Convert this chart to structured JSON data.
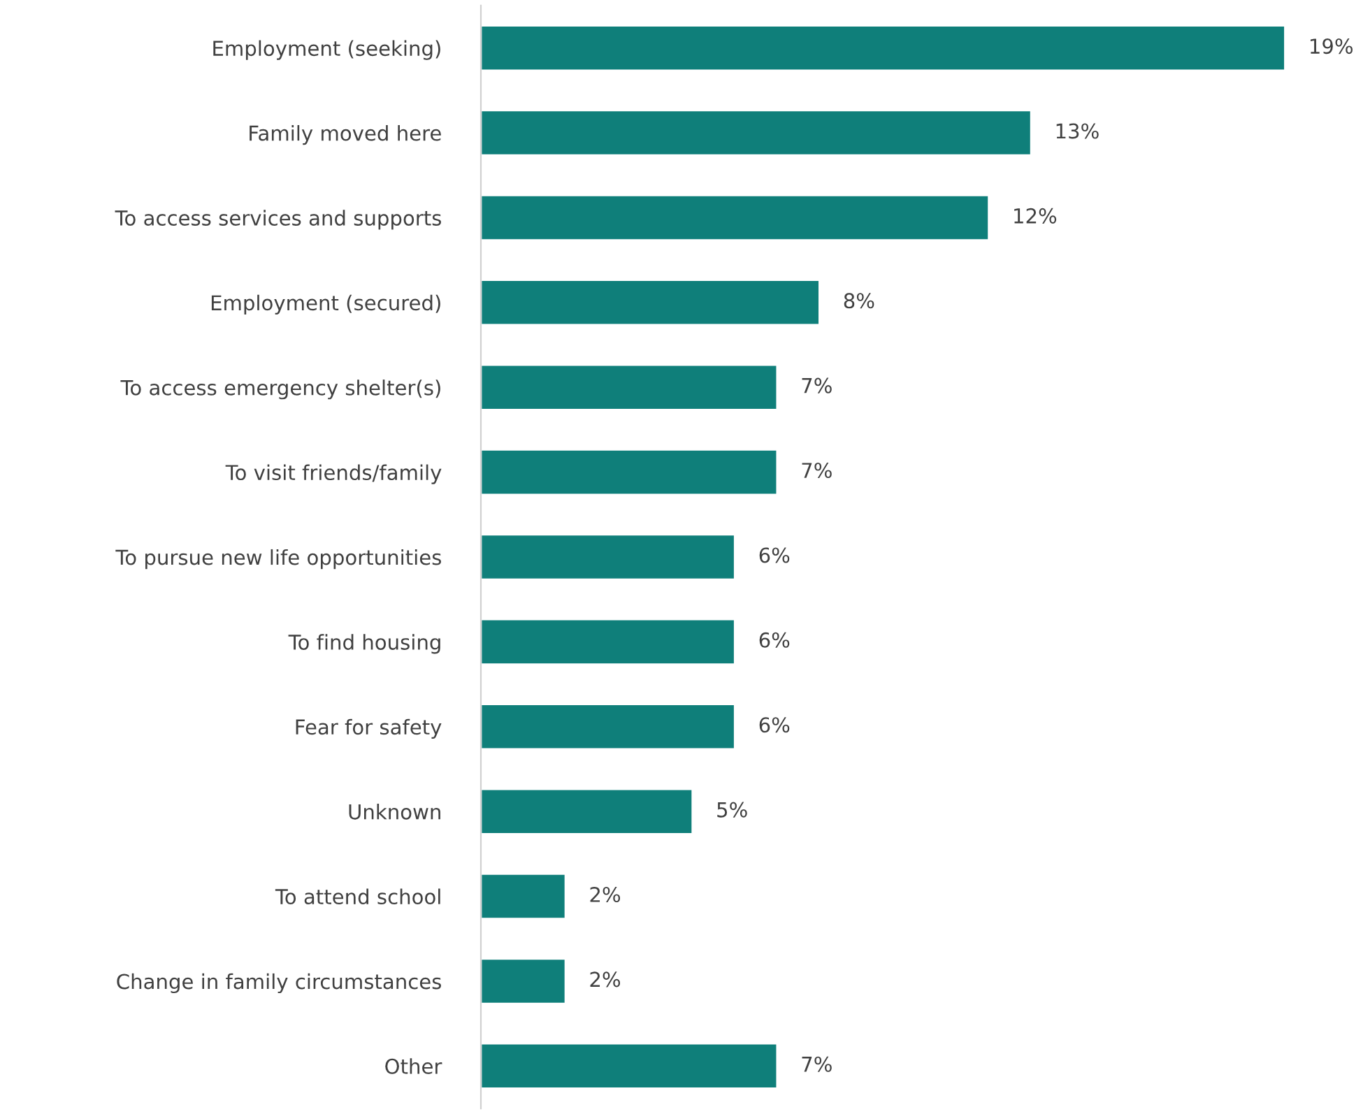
{
  "chart_data": {
    "type": "bar",
    "orientation": "horizontal",
    "categories": [
      "Employment (seeking)",
      "Family moved here",
      "To access services and supports",
      "Employment (secured)",
      "To access emergency shelter(s)",
      "To visit friends/family",
      "To pursue new life opportunities",
      "To find housing",
      "Fear for safety",
      "Unknown",
      "To attend school",
      "Change in family circumstances",
      "Other"
    ],
    "values": [
      19,
      13,
      12,
      8,
      7,
      7,
      6,
      6,
      6,
      5,
      2,
      2,
      7
    ],
    "value_labels": [
      "19%",
      "13%",
      "12%",
      "8%",
      "7%",
      "7%",
      "6%",
      "6%",
      "6%",
      "5%",
      "2%",
      "2%",
      "7%"
    ],
    "color": "#0f7f7a"
  }
}
